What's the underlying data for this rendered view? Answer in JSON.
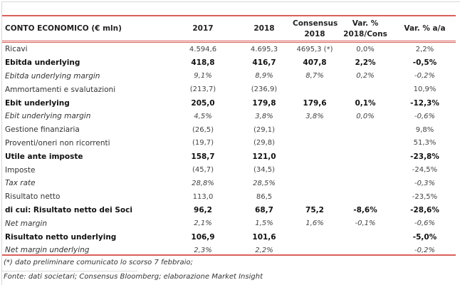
{
  "table": {
    "headers": [
      "CONTO ECONOMICO (€ mln)",
      "2017",
      "2018",
      "Consensus 2018",
      "Var. % 2018/Cons",
      "Var. % a/a"
    ],
    "header_lines": [
      [
        "CONTO ECONOMICO (€ mln)"
      ],
      [
        "2017"
      ],
      [
        "2018"
      ],
      [
        "Consensus",
        "2018"
      ],
      [
        "Var. %",
        "2018/Cons"
      ],
      [
        "Var. % a/a"
      ]
    ],
    "rows": [
      {
        "style": "normal",
        "cells": [
          "Ricavi",
          "4.594,6",
          "4.695,3",
          "4695,3 (*)",
          "0,0%",
          "2,2%"
        ]
      },
      {
        "style": "bold",
        "cells": [
          "Ebitda underlying",
          "418,8",
          "416,7",
          "407,8",
          "2,2%",
          "-0,5%"
        ]
      },
      {
        "style": "italic",
        "cells": [
          "Ebitda underlying margin",
          "9,1%",
          "8,9%",
          "8,7%",
          "0,2%",
          "-0,2%"
        ]
      },
      {
        "style": "normal",
        "cells": [
          "Ammortamenti e svalutazioni",
          "(213,7)",
          "(236,9)",
          "",
          "",
          "10,9%"
        ]
      },
      {
        "style": "bold",
        "cells": [
          "Ebit underlying",
          "205,0",
          "179,8",
          "179,6",
          "0,1%",
          "-12,3%"
        ]
      },
      {
        "style": "italic",
        "cells": [
          "Ebit underlying margin",
          "4,5%",
          "3,8%",
          "3,8%",
          "0,0%",
          "-0,6%"
        ]
      },
      {
        "style": "normal",
        "cells": [
          "Gestione finanziaria",
          "(26,5)",
          "(29,1)",
          "",
          "",
          "9,8%"
        ]
      },
      {
        "style": "normal",
        "cells": [
          "Proventi/oneri non ricorrenti",
          "(19,7)",
          "(29,8)",
          "",
          "",
          "51,3%"
        ]
      },
      {
        "style": "bold",
        "cells": [
          "Utile ante imposte",
          "158,7",
          "121,0",
          "",
          "",
          "-23,8%"
        ]
      },
      {
        "style": "normal",
        "cells": [
          "Imposte",
          "(45,7)",
          "(34,5)",
          "",
          "",
          "-24,5%"
        ]
      },
      {
        "style": "italic",
        "cells": [
          "Tax rate",
          "28,8%",
          "28,5%",
          "",
          "",
          "-0,3%"
        ]
      },
      {
        "style": "normal",
        "cells": [
          "Risultato netto",
          "113,0",
          "86,5",
          "",
          "",
          "-23,5%"
        ]
      },
      {
        "style": "bold",
        "cells": [
          "di cui: Risultato netto dei Soci",
          "96,2",
          "68,7",
          "75,2",
          "-8,6%",
          "-28,6%"
        ]
      },
      {
        "style": "italic",
        "cells": [
          "Net margin",
          "2,1%",
          "1,5%",
          "1,6%",
          "-0,1%",
          "-0,6%"
        ]
      },
      {
        "style": "bold",
        "cells": [
          "Risultato netto underlying",
          "106,9",
          "101,6",
          "",
          "",
          "-5,0%"
        ]
      },
      {
        "style": "italic",
        "cells": [
          "Net margin underlying",
          "2,3%",
          "2,2%",
          "",
          "",
          "-0,2%"
        ]
      }
    ]
  },
  "footnote": "(*) dato preliminare comunicato lo scorso 7 febbraio;",
  "source": "Fonte: dati societari; Consensus Bloomberg; elaborazione Market Insight",
  "colors": {
    "accent_red": "#d9605a"
  }
}
